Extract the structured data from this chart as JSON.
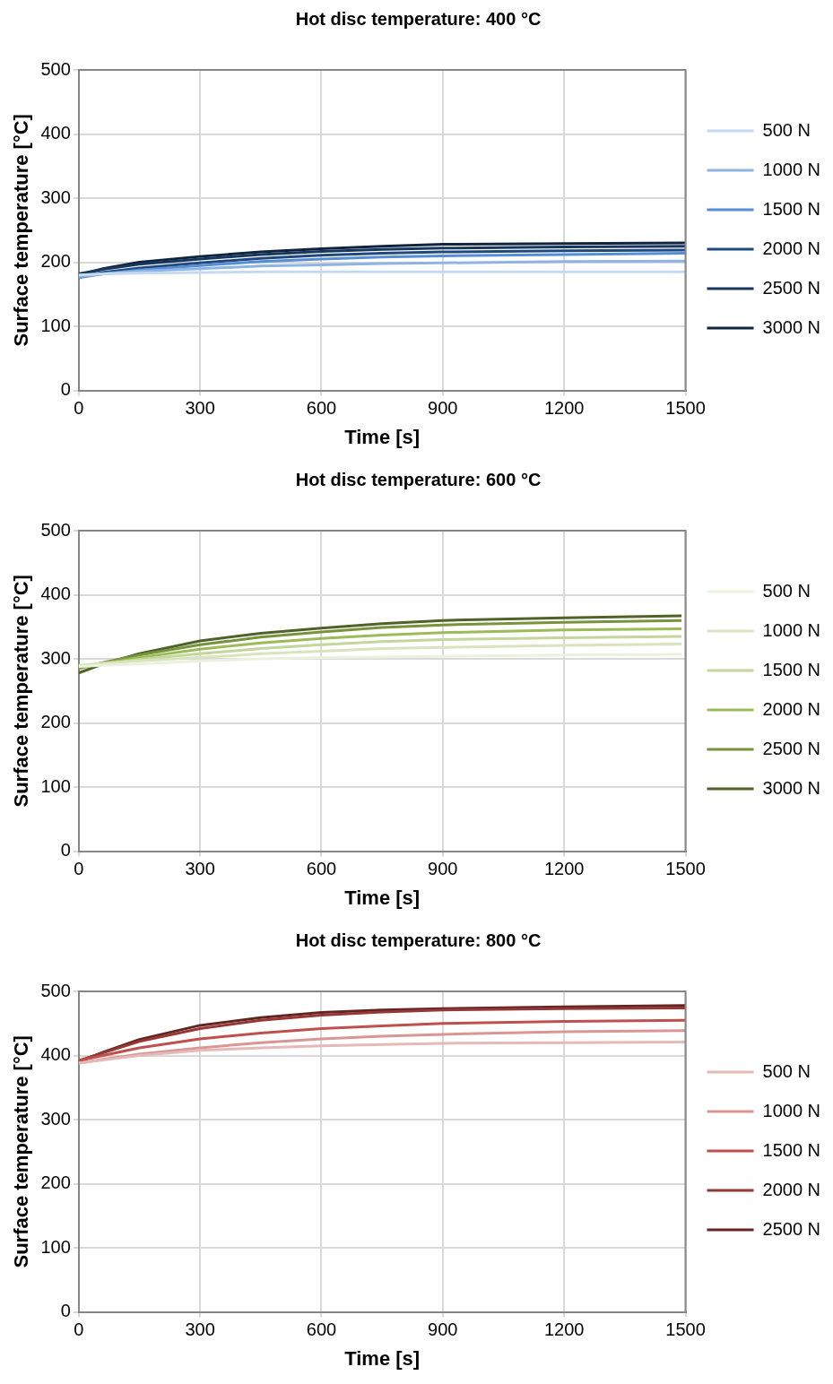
{
  "chart_data": [
    {
      "type": "line",
      "title": "Hot disc temperature: 400 °C",
      "xlabel": "Time [s]",
      "ylabel": "Surface temperature [°C]",
      "x": [
        0,
        60,
        150,
        300,
        450,
        600,
        750,
        900,
        1200,
        1500
      ],
      "xlim": [
        0,
        1500
      ],
      "xticks": [
        0,
        300,
        600,
        900,
        1200,
        1500
      ],
      "ylim": [
        0,
        500
      ],
      "yticks": [
        0,
        100,
        200,
        300,
        400,
        500
      ],
      "grid": true,
      "legend": "right",
      "series": [
        {
          "name": "500 N",
          "color": "#c5d9f1",
          "values": [
            180,
            182,
            183,
            184,
            185,
            185,
            185,
            185,
            185,
            185
          ]
        },
        {
          "name": "1000 N",
          "color": "#8eb4e3",
          "values": [
            178,
            182,
            186,
            190,
            194,
            196,
            198,
            199,
            201,
            202
          ]
        },
        {
          "name": "1500 N",
          "color": "#558ed5",
          "values": [
            176,
            182,
            188,
            195,
            201,
            205,
            208,
            210,
            212,
            214
          ]
        },
        {
          "name": "2000 N",
          "color": "#1f497d",
          "values": [
            178,
            184,
            191,
            199,
            206,
            211,
            214,
            216,
            218,
            219
          ]
        },
        {
          "name": "2500 N",
          "color": "#17375e",
          "values": [
            182,
            189,
            197,
            205,
            212,
            217,
            220,
            222,
            224,
            225
          ]
        },
        {
          "name": "3000 N",
          "color": "#0f243e",
          "values": [
            180,
            190,
            200,
            209,
            216,
            221,
            225,
            228,
            229,
            230
          ]
        }
      ]
    },
    {
      "type": "line",
      "title": "Hot disc temperature: 600 °C",
      "xlabel": "Time [s]",
      "ylabel": "Surface temperature [°C]",
      "x": [
        0,
        60,
        150,
        300,
        450,
        600,
        750,
        900,
        1200,
        1490
      ],
      "xlim": [
        0,
        1500
      ],
      "xticks": [
        0,
        300,
        600,
        900,
        1200,
        1500
      ],
      "ylim": [
        0,
        500
      ],
      "yticks": [
        0,
        100,
        200,
        300,
        400,
        500
      ],
      "grid": true,
      "legend": "right",
      "series": [
        {
          "name": "500 N",
          "color": "#ebf1de",
          "values": [
            288,
            290,
            292,
            297,
            300,
            302,
            303,
            304,
            306,
            307
          ]
        },
        {
          "name": "1000 N",
          "color": "#d7e4bd",
          "values": [
            290,
            293,
            297,
            302,
            308,
            312,
            316,
            318,
            321,
            323
          ]
        },
        {
          "name": "1500 N",
          "color": "#c3d69b",
          "values": [
            288,
            292,
            299,
            308,
            316,
            322,
            327,
            330,
            333,
            335
          ]
        },
        {
          "name": "2000 N",
          "color": "#9bbb59",
          "values": [
            287,
            293,
            302,
            315,
            325,
            332,
            337,
            341,
            345,
            347
          ]
        },
        {
          "name": "2500 N",
          "color": "#77933c",
          "values": [
            285,
            294,
            306,
            322,
            334,
            342,
            349,
            353,
            357,
            360
          ]
        },
        {
          "name": "3000 N",
          "color": "#4f6228",
          "values": [
            278,
            292,
            308,
            328,
            340,
            348,
            355,
            360,
            364,
            367
          ]
        }
      ]
    },
    {
      "type": "line",
      "title": "Hot disc temperature: 800 °C",
      "xlabel": "Time [s]",
      "ylabel": "Surface temperature [°C]",
      "x": [
        0,
        60,
        150,
        300,
        450,
        600,
        750,
        900,
        1200,
        1500
      ],
      "xlim": [
        0,
        1500
      ],
      "xticks": [
        0,
        300,
        600,
        900,
        1200,
        1500
      ],
      "ylim": [
        0,
        500
      ],
      "yticks": [
        0,
        100,
        200,
        300,
        400,
        500
      ],
      "grid": true,
      "legend": "right",
      "series": [
        {
          "name": "500 N",
          "color": "#e6b9b8",
          "values": [
            388,
            393,
            400,
            408,
            412,
            415,
            417,
            419,
            420,
            421
          ]
        },
        {
          "name": "1000 N",
          "color": "#d99694",
          "values": [
            388,
            394,
            402,
            412,
            420,
            426,
            430,
            433,
            437,
            439
          ]
        },
        {
          "name": "1500 N",
          "color": "#c0504d",
          "values": [
            392,
            400,
            412,
            426,
            435,
            442,
            446,
            450,
            453,
            455
          ]
        },
        {
          "name": "2000 N",
          "color": "#953735",
          "values": [
            392,
            404,
            422,
            442,
            455,
            463,
            468,
            471,
            473,
            474
          ]
        },
        {
          "name": "2500 N",
          "color": "#632523",
          "values": [
            390,
            405,
            425,
            447,
            459,
            467,
            471,
            473,
            476,
            478
          ]
        }
      ]
    }
  ]
}
